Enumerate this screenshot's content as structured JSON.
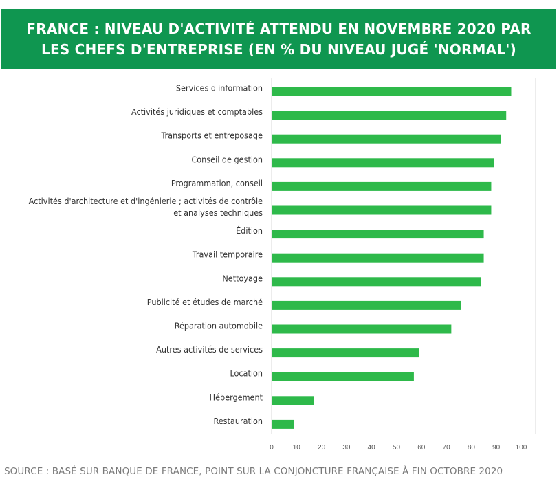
{
  "colors": {
    "banner": "#0f9650",
    "bar": "#2eb94a",
    "axis": "#d9d9d9",
    "label": "#333333",
    "source": "#7a7a7a"
  },
  "title_lines": [
    "FRANCE : NIVEAU D'ACTIVITÉ ATTENDU EN NOVEMBRE 2020 PAR",
    "LES CHEFS D'ENTREPRISE (EN % DU NIVEAU JUGÉ 'NORMAL')"
  ],
  "source": "SOURCE : BASÉ SUR BANQUE DE FRANCE, POINT SUR LA CONJONCTURE FRANÇAISE À FIN OCTOBRE 2020",
  "chart_data": {
    "type": "bar",
    "orientation": "horizontal",
    "categories": [
      [
        "Services d'information"
      ],
      [
        "Activités juridiques et comptables"
      ],
      [
        "Transports et entreposage"
      ],
      [
        "Conseil de gestion"
      ],
      [
        "Programmation, conseil"
      ],
      [
        "Activités d'architecture et d'ingénierie ; activités de contrôle",
        "et analyses techniques"
      ],
      [
        "Édition"
      ],
      [
        "Travail temporaire"
      ],
      [
        "Nettoyage"
      ],
      [
        "Publicité et études de marché"
      ],
      [
        "Réparation automobile"
      ],
      [
        "Autres activités de services"
      ],
      [
        "Location"
      ],
      [
        "Hébergement"
      ],
      [
        "Restauration"
      ]
    ],
    "values": [
      96,
      94,
      92,
      89,
      88,
      88,
      85,
      85,
      84,
      76,
      72,
      59,
      57,
      17,
      9
    ],
    "xlim": [
      0,
      100
    ],
    "xticks": [
      0,
      10,
      20,
      30,
      40,
      50,
      60,
      70,
      80,
      90,
      100
    ],
    "grid": false,
    "legend": "none",
    "title": "",
    "xlabel": "",
    "ylabel": ""
  }
}
